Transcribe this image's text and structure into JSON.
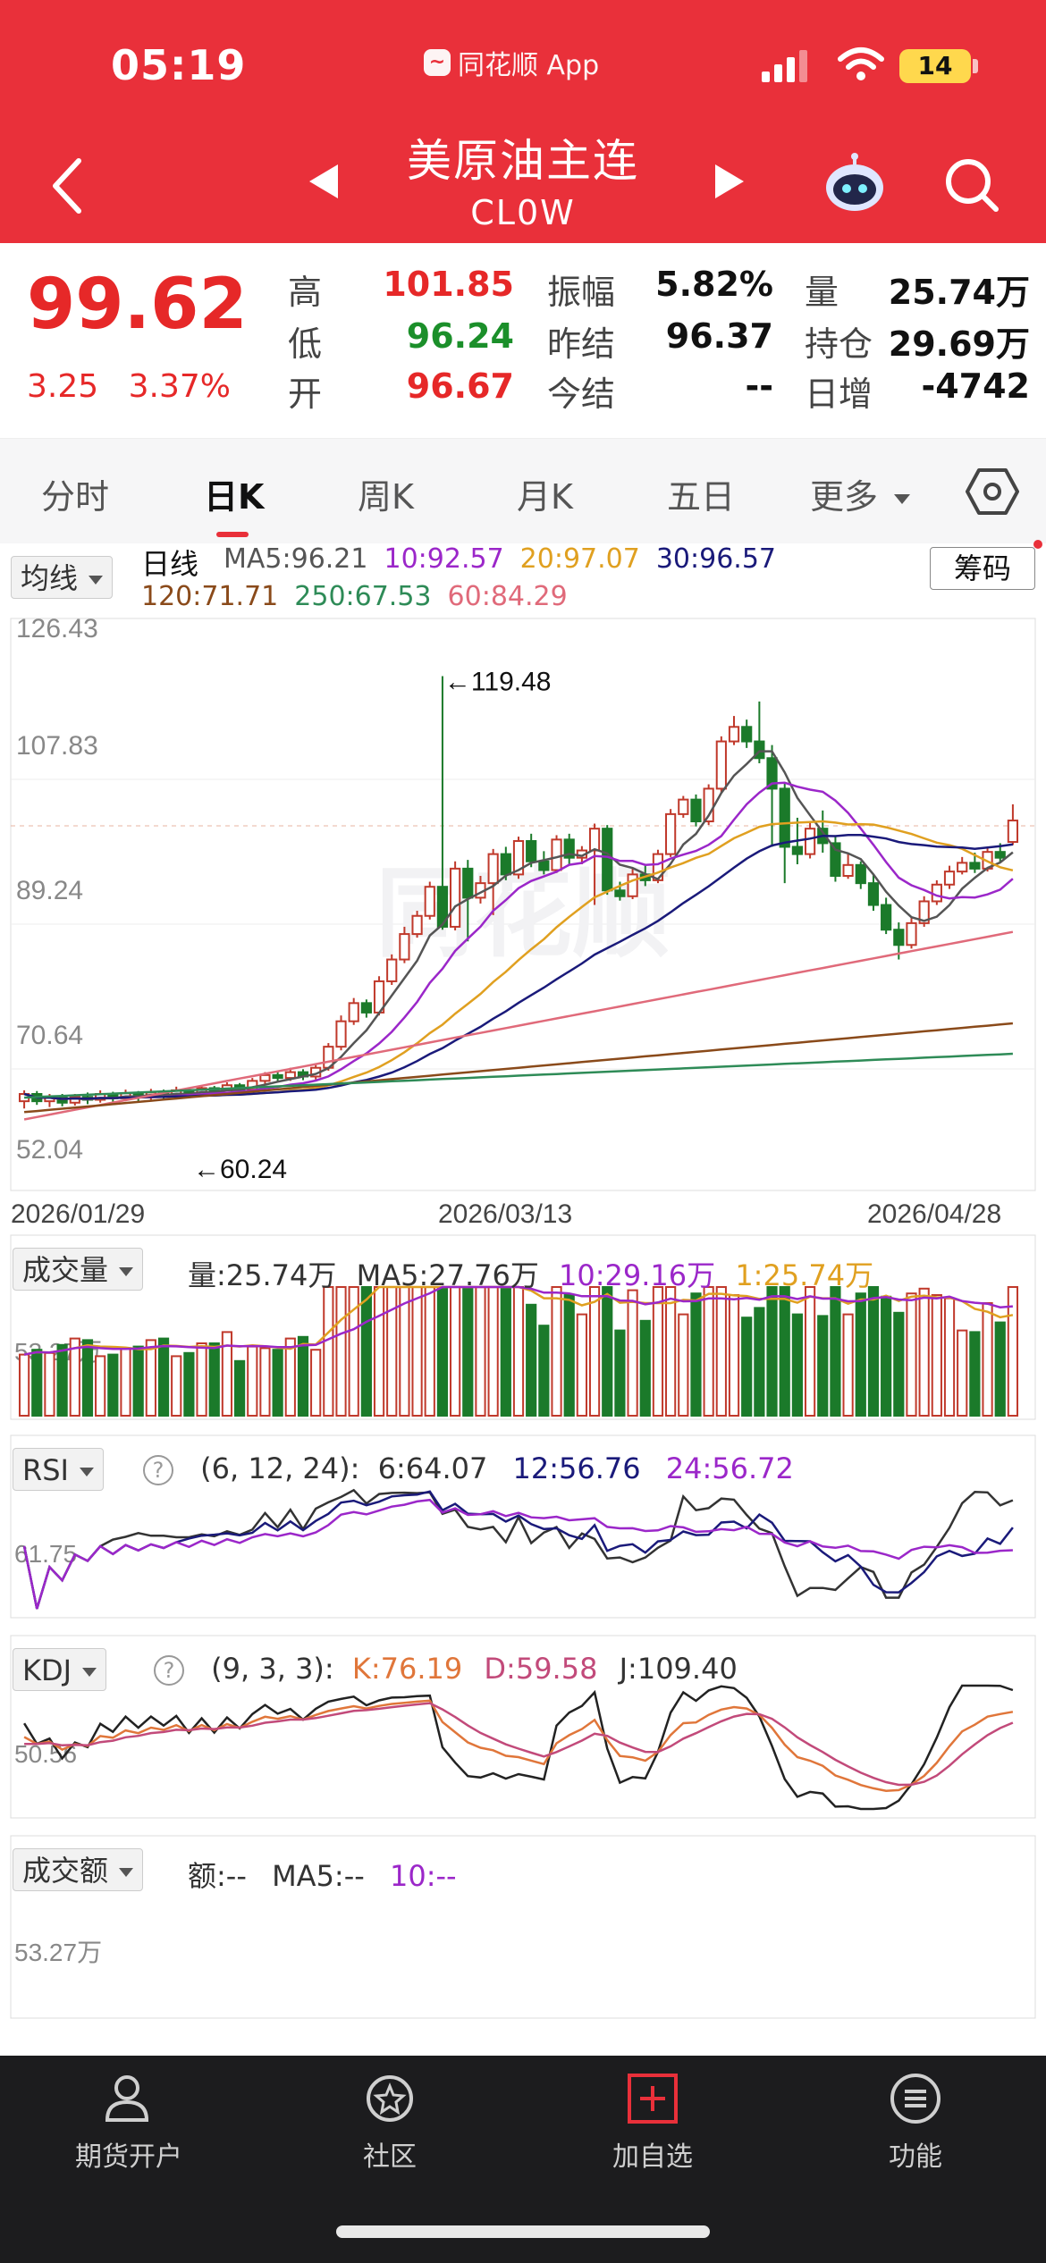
{
  "status_bar": {
    "time": "05:19",
    "app": "同花顺 App",
    "battery": "14"
  },
  "header": {
    "title": "美原油主连",
    "code": "CL0W"
  },
  "quote": {
    "price": "99.62",
    "change": "3.25",
    "change_pct": "3.37%",
    "fields": [
      {
        "label": "高",
        "value": "101.85",
        "color": "red"
      },
      {
        "label": "低",
        "value": "96.24",
        "color": "green"
      },
      {
        "label": "开",
        "value": "96.67",
        "color": "red"
      },
      {
        "label": "振幅",
        "value": "5.82%",
        "color": "black"
      },
      {
        "label": "昨结",
        "value": "96.37",
        "color": "black"
      },
      {
        "label": "今结",
        "value": "--",
        "color": "black"
      },
      {
        "label": "量",
        "value": "25.74万",
        "color": "black"
      },
      {
        "label": "持仓",
        "value": "29.69万",
        "color": "black"
      },
      {
        "label": "日增",
        "value": "-4742",
        "color": "black"
      }
    ]
  },
  "tabs": [
    "分时",
    "日K",
    "周K",
    "月K",
    "五日",
    "更多"
  ],
  "active_tab": "日K",
  "ma_legend": {
    "dropdown": "均线",
    "period": "日线",
    "chip_button": "筹码",
    "items": [
      {
        "text": "MA5:96.21",
        "color": "#555555"
      },
      {
        "text": "10:92.57",
        "color": "#9b27c9"
      },
      {
        "text": "20:97.07",
        "color": "#e0a020"
      },
      {
        "text": "30:96.57",
        "color": "#1a1a7a"
      },
      {
        "text": "120:71.71",
        "color": "#8a4a1a"
      },
      {
        "text": "250:67.53",
        "color": "#2e8b57"
      },
      {
        "text": "60:84.29",
        "color": "#e06a7a"
      }
    ]
  },
  "main_chart": {
    "y_ticks": [
      "126.43",
      "107.83",
      "89.24",
      "70.64",
      "52.04"
    ],
    "dates": [
      "2026/01/29",
      "2026/03/13",
      "2026/04/28"
    ],
    "high_label": "←119.48",
    "low_label": "←60.24",
    "watermark": "同花顺"
  },
  "volume": {
    "dropdown": "成交量",
    "vol_text": "量:25.74万",
    "ma5_text": "MA5:27.76万",
    "ma10_text": "10:29.16万",
    "ma_last_text": "1:25.74万",
    "y_tick": "53.27万"
  },
  "rsi": {
    "dropdown": "RSI",
    "params": "(6, 12, 24):",
    "r6": "6:64.07",
    "r12": "12:56.76",
    "r24": "24:56.72",
    "y_tick": "61.75"
  },
  "kdj": {
    "dropdown": "KDJ",
    "params": "(9, 3, 3):",
    "k": "K:76.19",
    "d": "D:59.58",
    "j": "J:109.40",
    "y_tick": "50.56"
  },
  "amount": {
    "dropdown": "成交额",
    "amt_text": "额:--",
    "ma5_text": "MA5:--",
    "ma10_text": "10:--",
    "y_tick": "53.27万"
  },
  "bottom_nav": [
    {
      "label": "期货开户",
      "icon": "account-icon"
    },
    {
      "label": "社区",
      "icon": "community-icon"
    },
    {
      "label": "加自选",
      "icon": "add-watchlist-icon"
    },
    {
      "label": "功能",
      "icon": "menu-icon"
    }
  ]
}
